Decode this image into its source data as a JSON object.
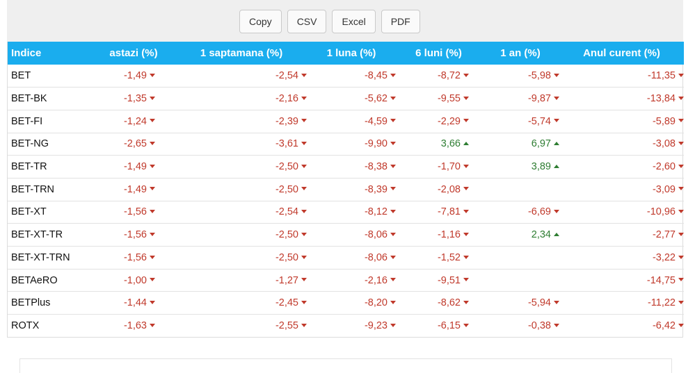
{
  "toolbar": {
    "buttons": [
      {
        "label": "Copy"
      },
      {
        "label": "CSV"
      },
      {
        "label": "Excel"
      },
      {
        "label": "PDF"
      }
    ]
  },
  "table": {
    "headers": [
      "Indice",
      "astazi (%)",
      "1 saptamana (%)",
      "1 luna (%)",
      "6 luni (%)",
      "1 an (%)",
      "Anul curent (%)"
    ],
    "rows": [
      {
        "name": "BET",
        "cells": [
          {
            "v": "-1,49",
            "d": "down"
          },
          {
            "v": "-2,54",
            "d": "down"
          },
          {
            "v": "-8,45",
            "d": "down"
          },
          {
            "v": "-8,72",
            "d": "down"
          },
          {
            "v": "-5,98",
            "d": "down"
          },
          {
            "v": "-11,35",
            "d": "down"
          }
        ]
      },
      {
        "name": "BET-BK",
        "cells": [
          {
            "v": "-1,35",
            "d": "down"
          },
          {
            "v": "-2,16",
            "d": "down"
          },
          {
            "v": "-5,62",
            "d": "down"
          },
          {
            "v": "-9,55",
            "d": "down"
          },
          {
            "v": "-9,87",
            "d": "down"
          },
          {
            "v": "-13,84",
            "d": "down"
          }
        ]
      },
      {
        "name": "BET-FI",
        "cells": [
          {
            "v": "-1,24",
            "d": "down"
          },
          {
            "v": "-2,39",
            "d": "down"
          },
          {
            "v": "-4,59",
            "d": "down"
          },
          {
            "v": "-2,29",
            "d": "down"
          },
          {
            "v": "-5,74",
            "d": "down"
          },
          {
            "v": "-5,89",
            "d": "down"
          }
        ]
      },
      {
        "name": "BET-NG",
        "cells": [
          {
            "v": "-2,65",
            "d": "down"
          },
          {
            "v": "-3,61",
            "d": "down"
          },
          {
            "v": "-9,90",
            "d": "down"
          },
          {
            "v": "3,66",
            "d": "up"
          },
          {
            "v": "6,97",
            "d": "up"
          },
          {
            "v": "-3,08",
            "d": "down"
          }
        ]
      },
      {
        "name": "BET-TR",
        "cells": [
          {
            "v": "-1,49",
            "d": "down"
          },
          {
            "v": "-2,50",
            "d": "down"
          },
          {
            "v": "-8,38",
            "d": "down"
          },
          {
            "v": "-1,70",
            "d": "down"
          },
          {
            "v": "3,89",
            "d": "up"
          },
          {
            "v": "-2,60",
            "d": "down"
          }
        ]
      },
      {
        "name": "BET-TRN",
        "cells": [
          {
            "v": "-1,49",
            "d": "down"
          },
          {
            "v": "-2,50",
            "d": "down"
          },
          {
            "v": "-8,39",
            "d": "down"
          },
          {
            "v": "-2,08",
            "d": "down"
          },
          {
            "v": "",
            "d": ""
          },
          {
            "v": "-3,09",
            "d": "down"
          }
        ]
      },
      {
        "name": "BET-XT",
        "cells": [
          {
            "v": "-1,56",
            "d": "down"
          },
          {
            "v": "-2,54",
            "d": "down"
          },
          {
            "v": "-8,12",
            "d": "down"
          },
          {
            "v": "-7,81",
            "d": "down"
          },
          {
            "v": "-6,69",
            "d": "down"
          },
          {
            "v": "-10,96",
            "d": "down"
          }
        ]
      },
      {
        "name": "BET-XT-TR",
        "cells": [
          {
            "v": "-1,56",
            "d": "down"
          },
          {
            "v": "-2,50",
            "d": "down"
          },
          {
            "v": "-8,06",
            "d": "down"
          },
          {
            "v": "-1,16",
            "d": "down"
          },
          {
            "v": "2,34",
            "d": "up"
          },
          {
            "v": "-2,77",
            "d": "down"
          }
        ]
      },
      {
        "name": "BET-XT-TRN",
        "cells": [
          {
            "v": "-1,56",
            "d": "down"
          },
          {
            "v": "-2,50",
            "d": "down"
          },
          {
            "v": "-8,06",
            "d": "down"
          },
          {
            "v": "-1,52",
            "d": "down"
          },
          {
            "v": "",
            "d": ""
          },
          {
            "v": "-3,22",
            "d": "down"
          }
        ]
      },
      {
        "name": "BETAeRO",
        "cells": [
          {
            "v": "-1,00",
            "d": "down"
          },
          {
            "v": "-1,27",
            "d": "down"
          },
          {
            "v": "-2,16",
            "d": "down"
          },
          {
            "v": "-9,51",
            "d": "down"
          },
          {
            "v": "",
            "d": ""
          },
          {
            "v": "-14,75",
            "d": "down"
          }
        ]
      },
      {
        "name": "BETPlus",
        "cells": [
          {
            "v": "-1,44",
            "d": "down"
          },
          {
            "v": "-2,45",
            "d": "down"
          },
          {
            "v": "-8,20",
            "d": "down"
          },
          {
            "v": "-8,62",
            "d": "down"
          },
          {
            "v": "-5,94",
            "d": "down"
          },
          {
            "v": "-11,22",
            "d": "down"
          }
        ]
      },
      {
        "name": "ROTX",
        "cells": [
          {
            "v": "-1,63",
            "d": "down"
          },
          {
            "v": "-2,55",
            "d": "down"
          },
          {
            "v": "-9,23",
            "d": "down"
          },
          {
            "v": "-6,15",
            "d": "down"
          },
          {
            "v": "-0,38",
            "d": "down"
          },
          {
            "v": "-6,42",
            "d": "down"
          }
        ]
      }
    ]
  },
  "colors": {
    "header_bg": "#1aadee",
    "negative": "#c0392b",
    "positive": "#2e7d32"
  },
  "icons": {
    "down": "caret-down-icon",
    "up": "caret-up-icon"
  }
}
